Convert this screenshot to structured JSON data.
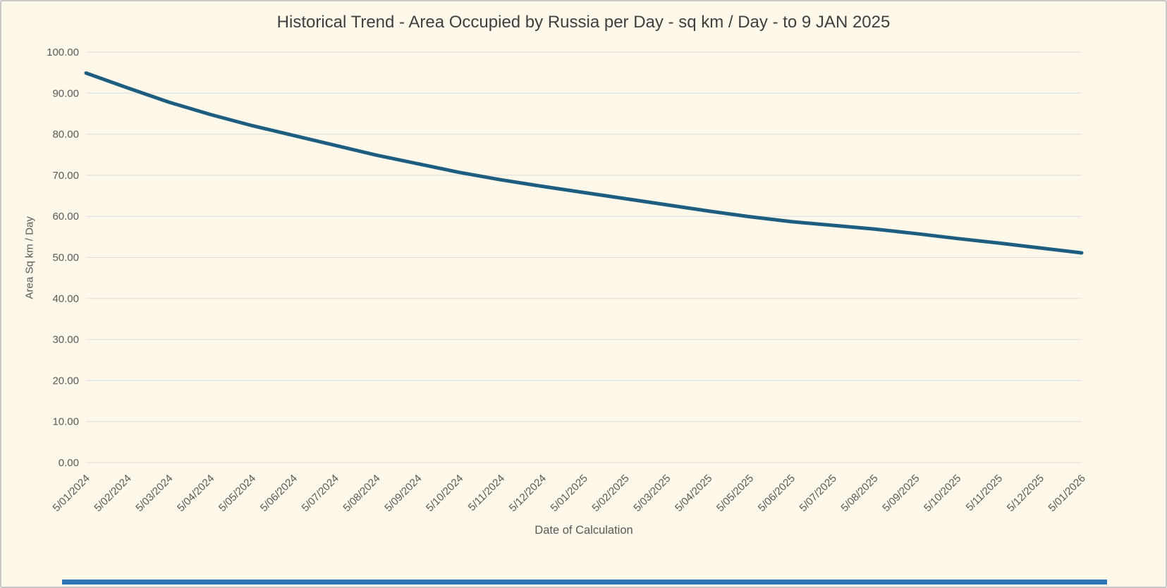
{
  "page": {
    "background_color": "#fdf8ea",
    "border_color": "#c9c9c9",
    "accent_bar_color": "#2e75b6"
  },
  "chart_data": {
    "type": "line",
    "title": "Historical Trend - Area Occupied by Russia per Day - sq km / Day - to 9 JAN 2025",
    "xlabel": "Date of Calculation",
    "ylabel": "Area Sq km / Day",
    "ylim": [
      0,
      100
    ],
    "ytick_step": 10,
    "ytick_decimals": 2,
    "grid": true,
    "legend": "none",
    "series_color": "#1c5d80",
    "gridline_color": "#dcdcdc",
    "categories": [
      "5/01/2024",
      "5/02/2024",
      "5/03/2024",
      "5/04/2024",
      "5/05/2024",
      "5/06/2024",
      "5/07/2024",
      "5/08/2024",
      "5/09/2024",
      "5/10/2024",
      "5/11/2024",
      "5/12/2024",
      "5/01/2025",
      "5/02/2025",
      "5/03/2025",
      "5/04/2025",
      "5/05/2025",
      "5/06/2025",
      "5/07/2025",
      "5/08/2025",
      "5/09/2025",
      "5/10/2025",
      "5/11/2025",
      "5/12/2025",
      "5/01/2026"
    ],
    "values": [
      94.9,
      91.3,
      87.8,
      84.8,
      82.1,
      79.7,
      77.3,
      74.9,
      72.8,
      70.7,
      68.9,
      67.3,
      65.8,
      64.3,
      62.8,
      61.3,
      59.9,
      58.7,
      57.8,
      56.9,
      55.8,
      54.6,
      53.5,
      52.3,
      51.1
    ]
  }
}
